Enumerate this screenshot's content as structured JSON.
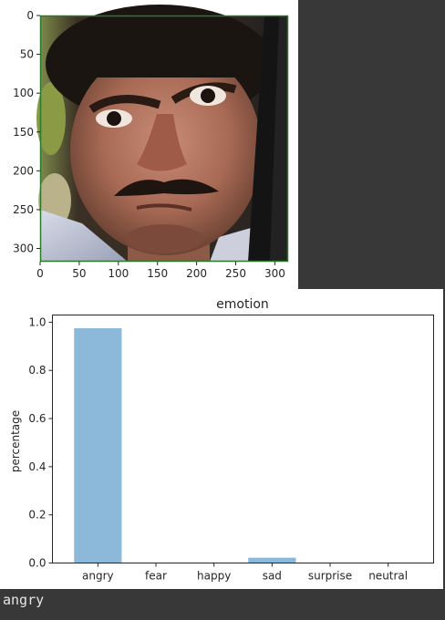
{
  "image_axes": {
    "x_ticks": [
      "0",
      "50",
      "100",
      "150",
      "200",
      "250",
      "300"
    ],
    "y_ticks": [
      "0",
      "50",
      "100",
      "150",
      "200",
      "250",
      "300"
    ],
    "x_range": [
      0,
      317
    ],
    "y_range": [
      0,
      317
    ]
  },
  "chart_data": {
    "type": "bar",
    "title": "emotion",
    "xlabel": "",
    "ylabel": "percentage",
    "categories": [
      "angry",
      "fear",
      "happy",
      "sad",
      "surprise",
      "neutral"
    ],
    "values": [
      0.975,
      0.0,
      0.0,
      0.022,
      0.0,
      0.0
    ],
    "ylim": [
      0,
      1.03
    ],
    "y_ticks": [
      "0.0",
      "0.2",
      "0.4",
      "0.6",
      "0.8",
      "1.0"
    ],
    "y_tick_values": [
      0.0,
      0.2,
      0.4,
      0.6,
      0.8,
      1.0
    ],
    "bar_color": "#8cb9da",
    "grid": false
  },
  "output": {
    "text": "angry"
  }
}
